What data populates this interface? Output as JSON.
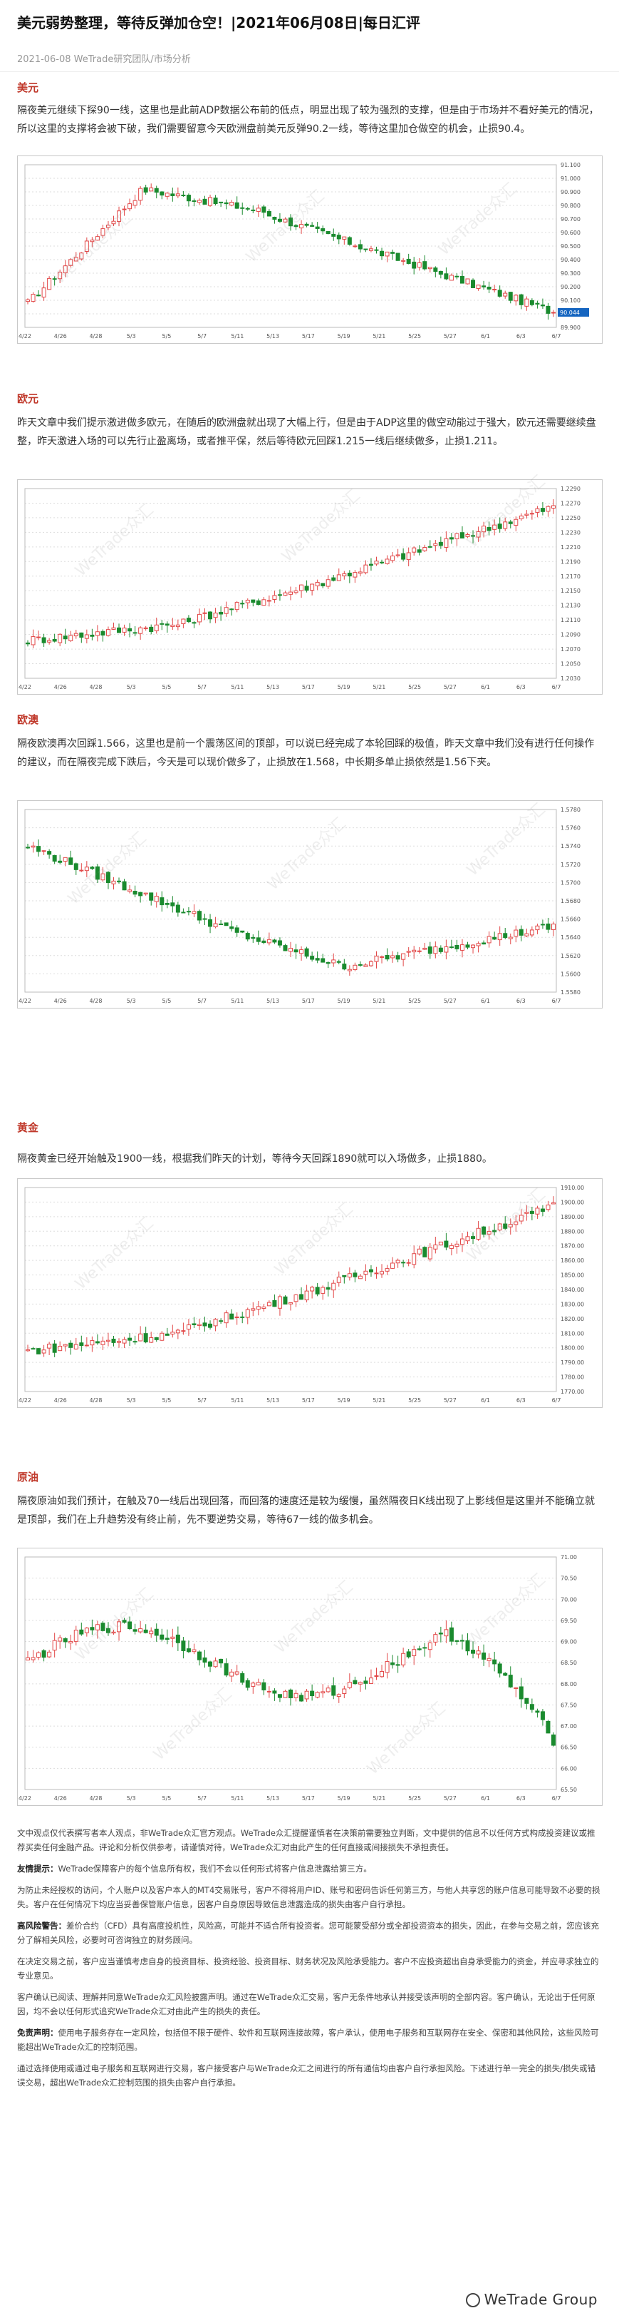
{
  "article": {
    "title": "美元弱势整理，等待反弹加仓空！|2021年06月08日|每日汇评",
    "meta": "2021-06-08 WeTrade研究团队/市场分析",
    "watermark": "WeTrade众汇"
  },
  "sections": [
    {
      "heading": "美元",
      "text": "隔夜美元继续下探90一线，这里也是此前ADP数据公布前的低点，明显出现了较为强烈的支撑，但是由于市场并不看好美元的情况，所以这里的支撑将会被下破，我们需要留意今天欧洲盘前美元反弹90.2一线，等待这里加仓做空的机会，止损90.4。"
    },
    {
      "heading": "欧元",
      "text": "昨天文章中我们提示激进做多欧元，在随后的欧洲盘就出现了大幅上行，但是由于ADP这里的做空动能过于强大，欧元还需要继续盘整，昨天激进入场的可以先行止盈离场，或者推平保，然后等待欧元回踩1.215一线后继续做多，止损1.211。"
    },
    {
      "heading": "欧澳",
      "text": "隔夜欧澳再次回踩1.566，这里也是前一个震荡区间的顶部，可以说已经完成了本轮回踩的极值，昨天文章中我们没有进行任何操作的建议，而在隔夜完成下跌后，今天是可以现价做多了，止损放在1.568，中长期多单止损依然是1.56下夹。"
    },
    {
      "heading": "黄金",
      "text": "隔夜黄金已经开始触及1900一线，根据我们昨天的计划，等待今天回踩1890就可以入场做多，止损1880。"
    },
    {
      "heading": "原油",
      "text": "隔夜原油如我们预计，在触及70一线后出现回落，而回落的速度还是较为缓慢，虽然隔夜日K线出现了上影线但是这里并不能确立就是顶部，我们在上升趋势没有终止前，先不要逆势交易，等待67一线的做多机会。"
    }
  ],
  "disclaimer": {
    "intro": "文中观点仅代表撰写者本人观点，非WeTrade众汇官方观点。WeTrade众汇提醒谨慎者在决策前需要独立判断，文中提供的信息不以任何方式构成投资建议或推荐买卖任何金融产品。评论和分析仅供参考，请谨慎对待，WeTrade众汇对由此产生的任何直接或间接损失不承担责任。",
    "friendly_label": "友情提示：",
    "friendly_text": "WeTrade保障客户的每个信息所有权，我们不会以任何形式将客户信息泄露给第三方。",
    "account_text": "为防止未经授权的访问，个人账户以及客户本人的MT4交易账号，客户不得将用户ID、账号和密码告诉任何第三方，与他人共享您的账户信息可能导致不必要的损失。客户在任何情况下均应当妥善保管账户信息，因客户自身原因导致信息泄露造成的损失由客户自行承担。",
    "risk_label": "高风险警告：",
    "risk_text": "差价合约（CFD）具有高度投机性，风险高，可能并不适合所有投资者。您可能蒙受部分或全部投资资本的损失，因此，在参与交易之前，您应该充分了解相关风险，必要时可咨询独立的财务顾问。",
    "para2": "在决定交易之前，客户应当谨慎考虑自身的投资目标、投资经验、投资目标、财务状况及风险承受能力。客户不应投资超出自身承受能力的资金，并应寻求独立的专业意见。",
    "para3": "客户确认已阅读、理解并同意WeTrade众汇风险披露声明。通过在WeTrade众汇交易，客户无条件地承认并接受该声明的全部内容。客户确认，无论出于任何原因，均不会以任何形式追究WeTrade众汇对由此产生的损失的责任。",
    "exempt_label": "免责声明：",
    "exempt_text": "使用电子服务存在一定风险，包括但不限于硬件、软件和互联网连接故障，客户承认，使用电子服务和互联网存在安全、保密和其他风险，这些风险可能超出WeTrade众汇的控制范围。",
    "para4": "通过选择使用或通过电子服务和互联网进行交易，客户接受客户与WeTrade众汇之间进行的所有通信均由客户自行承担风险。下述进行单一完全的损失/损失或错误交易，超出WeTrade众汇控制范围的损失由客户自行承担。"
  },
  "footer": {
    "brand": "WeTrade Group",
    "icon": "wetrade-logo-icon"
  },
  "charts": [
    {
      "type": "candlestick",
      "instrument": "USD Index",
      "trend": "rise-then-decline",
      "colors": {
        "up": "#e24848",
        "down": "#1a8a2e",
        "grid": "#dddddd",
        "marker": "#1565c0"
      },
      "x_ticks": [
        "4/22",
        "4/26",
        "4/28",
        "5/3",
        "5/5",
        "5/7",
        "5/11",
        "5/13",
        "5/17",
        "5/19",
        "5/21",
        "5/25",
        "5/27",
        "6/1",
        "6/3",
        "6/7"
      ],
      "y_ticks": [
        "91.100",
        "91.000",
        "90.900",
        "90.800",
        "90.700",
        "90.600",
        "90.500",
        "90.400",
        "90.300",
        "90.200",
        "90.100",
        "90.000",
        "89.900"
      ],
      "last_price": "90.044"
    },
    {
      "type": "candlestick",
      "instrument": "EURUSD",
      "trend": "rise",
      "colors": {
        "up": "#e24848",
        "down": "#1a8a2e",
        "grid": "#dddddd"
      },
      "x_ticks": [
        "4/22",
        "4/26",
        "4/28",
        "5/3",
        "5/5",
        "5/7",
        "5/11",
        "5/13",
        "5/17",
        "5/19",
        "5/21",
        "5/25",
        "5/27",
        "6/1",
        "6/3",
        "6/7"
      ],
      "y_ticks": [
        "1.2290",
        "1.2270",
        "1.2250",
        "1.2230",
        "1.2210",
        "1.2190",
        "1.2170",
        "1.2150",
        "1.2130",
        "1.2110",
        "1.2090",
        "1.2070",
        "1.2050",
        "1.2030"
      ]
    },
    {
      "type": "candlestick",
      "instrument": "EURAUD",
      "trend": "decline-then-recover",
      "colors": {
        "up": "#e24848",
        "down": "#1a8a2e",
        "grid": "#dddddd"
      },
      "x_ticks": [
        "4/22",
        "4/26",
        "4/28",
        "5/3",
        "5/5",
        "5/7",
        "5/11",
        "5/13",
        "5/17",
        "5/19",
        "5/21",
        "5/25",
        "5/27",
        "6/1",
        "6/3",
        "6/7"
      ],
      "y_ticks": [
        "1.5780",
        "1.5760",
        "1.5740",
        "1.5720",
        "1.5700",
        "1.5680",
        "1.5660",
        "1.5640",
        "1.5620",
        "1.5600",
        "1.5580"
      ]
    },
    {
      "type": "candlestick",
      "instrument": "XAUUSD",
      "trend": "rise",
      "colors": {
        "up": "#e24848",
        "down": "#1a8a2e",
        "grid": "#dddddd"
      },
      "x_ticks": [
        "4/22",
        "4/26",
        "4/28",
        "5/3",
        "5/5",
        "5/7",
        "5/11",
        "5/13",
        "5/17",
        "5/19",
        "5/21",
        "5/25",
        "5/27",
        "6/1",
        "6/3",
        "6/7"
      ],
      "y_ticks": [
        "1910.00",
        "1900.00",
        "1890.00",
        "1880.00",
        "1870.00",
        "1860.00",
        "1850.00",
        "1840.00",
        "1830.00",
        "1820.00",
        "1810.00",
        "1800.00",
        "1790.00",
        "1780.00",
        "1770.00"
      ]
    },
    {
      "type": "candlestick",
      "instrument": "Crude Oil",
      "trend": "wave-then-decline",
      "colors": {
        "up": "#e24848",
        "down": "#1a8a2e",
        "grid": "#dddddd"
      },
      "x_ticks": [
        "4/22",
        "4/26",
        "4/28",
        "5/3",
        "5/5",
        "5/7",
        "5/11",
        "5/13",
        "5/17",
        "5/19",
        "5/21",
        "5/25",
        "5/27",
        "6/1",
        "6/3",
        "6/7"
      ],
      "y_ticks": [
        "71.00",
        "70.50",
        "70.00",
        "69.50",
        "69.00",
        "68.50",
        "68.00",
        "67.50",
        "67.00",
        "66.50",
        "66.00",
        "65.50"
      ]
    }
  ]
}
